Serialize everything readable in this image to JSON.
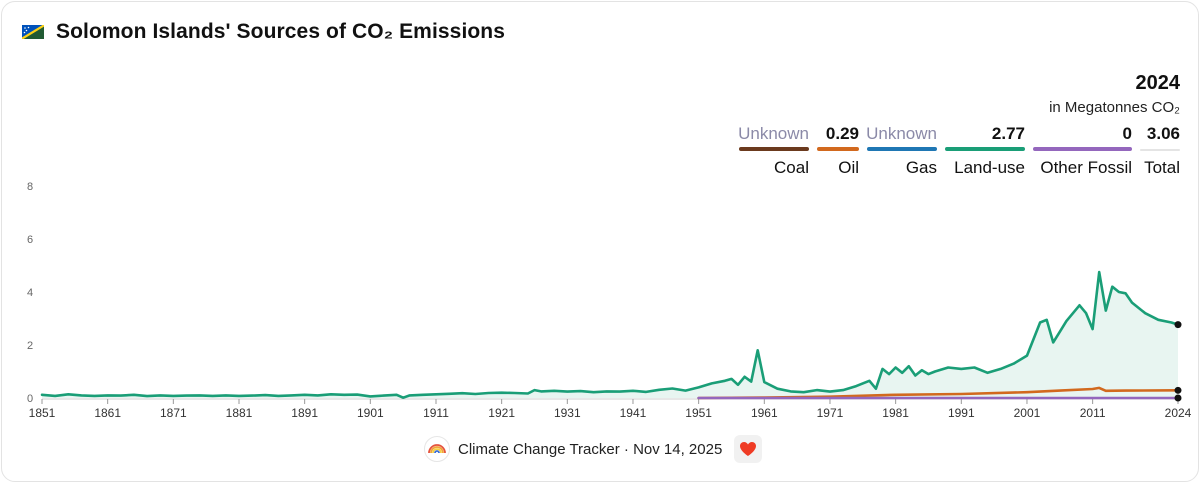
{
  "header": {
    "flag_icon": "solomon-islands-flag-icon",
    "title": "Solomon Islands' Sources of CO₂ Emissions"
  },
  "legend": {
    "year": "2024",
    "unit": "in Megatonnes CO₂",
    "series": [
      {
        "key": "coal",
        "value": "Unknown",
        "label": "Coal",
        "color": "#6b3a1e"
      },
      {
        "key": "oil",
        "value": "0.29",
        "label": "Oil",
        "color": "#d2691e"
      },
      {
        "key": "gas",
        "value": "Unknown",
        "label": "Gas",
        "color": "#1f77b4"
      },
      {
        "key": "landuse",
        "value": "2.77",
        "label": "Land-use",
        "color": "#1a9e77"
      },
      {
        "key": "other",
        "value": "0",
        "label": "Other Fossil",
        "color": "#9467bd"
      },
      {
        "key": "total",
        "value": "3.06",
        "label": "Total",
        "color": "#dddddd"
      }
    ]
  },
  "footer": {
    "text": "Climate Change Tracker · Nov 14, 2025",
    "logo_icon": "climate-change-tracker-logo-icon",
    "heart_icon": "heart-icon"
  },
  "chart_data": {
    "type": "area",
    "x_ticks": [
      1851,
      1861,
      1871,
      1881,
      1891,
      1901,
      1911,
      1921,
      1931,
      1941,
      1951,
      1961,
      1971,
      1981,
      1991,
      2001,
      2011,
      2024
    ],
    "y_ticks": [
      0,
      2,
      4,
      6,
      8
    ],
    "xlim": [
      1851,
      2024
    ],
    "ylim": [
      0,
      8
    ],
    "grid": false,
    "legend_position": "top-right",
    "series": [
      {
        "name": "Land-use",
        "color": "#1a9e77",
        "fill": true,
        "x": [
          1851,
          1853,
          1855,
          1857,
          1859,
          1861,
          1863,
          1865,
          1867,
          1869,
          1871,
          1873,
          1875,
          1877,
          1879,
          1881,
          1883,
          1885,
          1887,
          1889,
          1891,
          1893,
          1895,
          1897,
          1899,
          1901,
          1903,
          1905,
          1906,
          1907,
          1909,
          1911,
          1913,
          1915,
          1917,
          1919,
          1921,
          1923,
          1925,
          1926,
          1927,
          1929,
          1931,
          1933,
          1935,
          1937,
          1939,
          1941,
          1943,
          1945,
          1947,
          1949,
          1951,
          1953,
          1955,
          1956,
          1957,
          1958,
          1959,
          1960,
          1961,
          1963,
          1965,
          1967,
          1969,
          1971,
          1973,
          1975,
          1977,
          1978,
          1979,
          1980,
          1981,
          1982,
          1983,
          1984,
          1985,
          1986,
          1987,
          1989,
          1991,
          1993,
          1995,
          1997,
          1999,
          2001,
          2003,
          2004,
          2005,
          2006,
          2007,
          2009,
          2010,
          2011,
          2012,
          2013,
          2014,
          2015,
          2016,
          2017,
          2019,
          2021,
          2023,
          2024
        ],
        "y": [
          0.12,
          0.08,
          0.14,
          0.1,
          0.08,
          0.1,
          0.09,
          0.12,
          0.07,
          0.1,
          0.08,
          0.09,
          0.1,
          0.08,
          0.1,
          0.08,
          0.09,
          0.11,
          0.08,
          0.1,
          0.12,
          0.1,
          0.14,
          0.12,
          0.13,
          0.06,
          0.09,
          0.12,
          0.01,
          0.1,
          0.12,
          0.14,
          0.16,
          0.18,
          0.15,
          0.19,
          0.2,
          0.19,
          0.17,
          0.3,
          0.25,
          0.27,
          0.24,
          0.26,
          0.22,
          0.25,
          0.24,
          0.27,
          0.23,
          0.31,
          0.36,
          0.28,
          0.4,
          0.55,
          0.65,
          0.72,
          0.5,
          0.8,
          0.62,
          1.8,
          0.6,
          0.35,
          0.25,
          0.22,
          0.3,
          0.24,
          0.3,
          0.45,
          0.65,
          0.35,
          1.1,
          0.9,
          1.15,
          0.95,
          1.2,
          0.85,
          1.05,
          0.9,
          1.0,
          1.15,
          1.1,
          1.15,
          0.95,
          1.1,
          1.3,
          1.6,
          2.85,
          2.95,
          2.1,
          2.5,
          2.9,
          3.5,
          3.2,
          2.6,
          4.75,
          3.3,
          4.2,
          4.0,
          3.95,
          3.6,
          3.2,
          2.95,
          2.85,
          2.77
        ]
      },
      {
        "name": "Oil",
        "color": "#d2691e",
        "fill": false,
        "x": [
          1951,
          1961,
          1971,
          1975,
          1981,
          1991,
          2001,
          2006,
          2011,
          2012,
          2013,
          2016,
          2024
        ],
        "y": [
          0.0,
          0.02,
          0.05,
          0.08,
          0.12,
          0.15,
          0.22,
          0.28,
          0.34,
          0.38,
          0.27,
          0.28,
          0.29
        ]
      },
      {
        "name": "Other Fossil",
        "color": "#9467bd",
        "fill": false,
        "x": [
          1951,
          2024
        ],
        "y": [
          0,
          0
        ]
      }
    ],
    "end_values": [
      {
        "series": "Land-use",
        "x": 2024,
        "y": 2.77
      },
      {
        "series": "Oil",
        "x": 2024,
        "y": 0.29
      },
      {
        "series": "Other Fossil",
        "x": 2024,
        "y": 0
      }
    ]
  }
}
